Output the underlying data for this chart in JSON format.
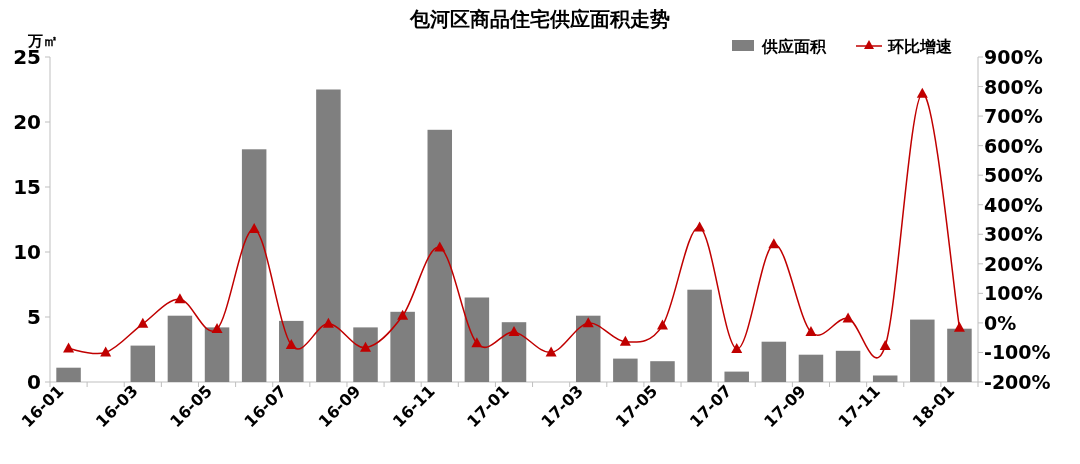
{
  "chart_data": {
    "type": "bar",
    "title": "包河区商品住宅供应面积走势",
    "ylabel": "万㎡",
    "categories": [
      "16-01",
      null,
      "16-03",
      null,
      "16-05",
      null,
      "16-07",
      null,
      "16-09",
      null,
      "16-11",
      null,
      "17-01",
      null,
      "17-03",
      null,
      "17-05",
      null,
      "17-07",
      null,
      "17-09",
      null,
      "17-11",
      null,
      "18-01"
    ],
    "series": [
      {
        "name": "供应面积",
        "color": "#7f7f7f",
        "values": [
          1.1,
          0,
          2.8,
          5.1,
          4.2,
          17.9,
          4.7,
          22.5,
          4.2,
          5.4,
          19.4,
          6.5,
          4.6,
          0,
          5.1,
          1.8,
          1.6,
          7.1,
          0.8,
          3.1,
          2.1,
          2.4,
          0.5,
          4.8,
          4.1
        ]
      },
      {
        "name": "环比增速",
        "type": "line",
        "axis": "y2",
        "color": "#c00000",
        "marker": "triangle",
        "values": [
          -87,
          -100,
          -3,
          80,
          -21,
          318,
          -75,
          -3,
          -84,
          24,
          255,
          -69,
          -31,
          -100,
          -1,
          -64,
          -9,
          323,
          -88,
          266,
          -31,
          15,
          -78,
          776,
          -16
        ]
      }
    ],
    "ylim": [
      0,
      25
    ],
    "yticks": [
      0,
      5,
      10,
      15,
      20,
      25
    ],
    "y2lim": [
      -200,
      900
    ],
    "y2ticks": [
      {
        "value": -200,
        "label": "-200%"
      },
      {
        "value": -100,
        "label": "-100%"
      },
      {
        "value": 0,
        "label": "0%"
      },
      {
        "value": 100,
        "label": "100%"
      },
      {
        "value": 200,
        "label": "200%"
      },
      {
        "value": 300,
        "label": "300%"
      },
      {
        "value": 400,
        "label": "400%"
      },
      {
        "value": 500,
        "label": "500%"
      },
      {
        "value": 600,
        "label": "600%"
      },
      {
        "value": 700,
        "label": "700%"
      },
      {
        "value": 800,
        "label": "800%"
      },
      {
        "value": 900,
        "label": "900%"
      }
    ],
    "legend": "top right",
    "grid": false
  }
}
